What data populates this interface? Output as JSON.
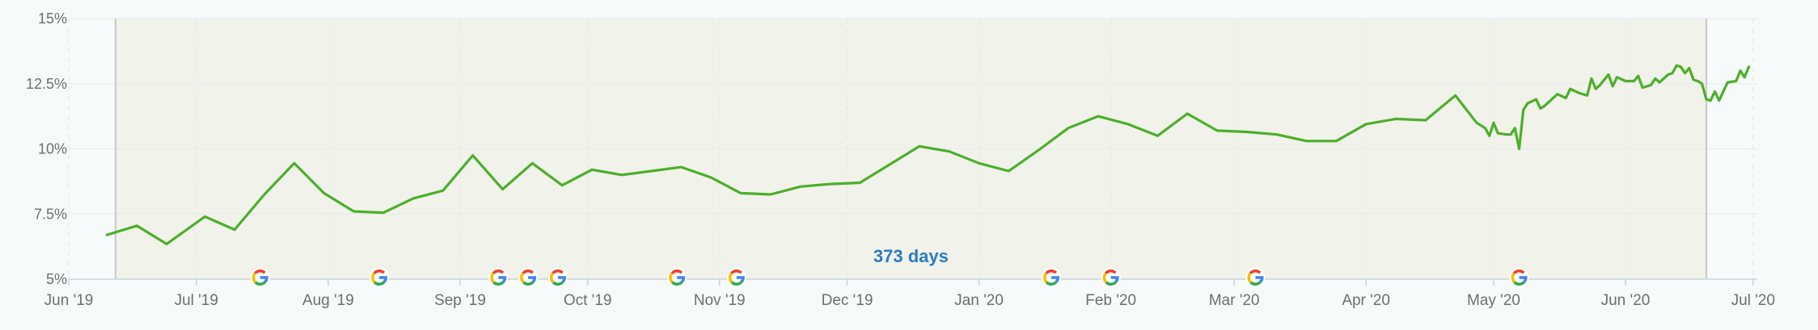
{
  "chart_data": {
    "type": "line",
    "title": "",
    "xlabel": "",
    "ylabel": "",
    "ylim": [
      5,
      15
    ],
    "y_ticks": [
      "5%",
      "7.5%",
      "10%",
      "12.5%",
      "15%"
    ],
    "y_tick_values": [
      5,
      7.5,
      10,
      12.5,
      15
    ],
    "xlim": [
      "2019-06-01",
      "2020-07-02"
    ],
    "x_ticks": [
      {
        "label": "Jun '19",
        "date": "2019-06-01"
      },
      {
        "label": "Jul '19",
        "date": "2019-07-01"
      },
      {
        "label": "Aug '19",
        "date": "2019-08-01"
      },
      {
        "label": "Sep '19",
        "date": "2019-09-01"
      },
      {
        "label": "Oct '19",
        "date": "2019-10-01"
      },
      {
        "label": "Nov '19",
        "date": "2019-11-01"
      },
      {
        "label": "Dec '19",
        "date": "2019-12-01"
      },
      {
        "label": "Jan '20",
        "date": "2020-01-01"
      },
      {
        "label": "Feb '20",
        "date": "2020-02-01"
      },
      {
        "label": "Mar '20",
        "date": "2020-03-01"
      },
      {
        "label": "Apr '20",
        "date": "2020-04-01"
      },
      {
        "label": "May '20",
        "date": "2020-05-01"
      },
      {
        "label": "Jun '20",
        "date": "2020-06-01"
      },
      {
        "label": "Jul '20",
        "date": "2020-07-01"
      }
    ],
    "grid": true,
    "line_color": "#4caf2a",
    "selection": {
      "label": "373 days",
      "start": "2019-06-12",
      "end": "2020-06-20",
      "fill_color": "#f1f3eb"
    },
    "series": [
      {
        "points": [
          [
            "2019-06-10",
            6.7
          ],
          [
            "2019-06-17",
            7.05
          ],
          [
            "2019-06-24",
            6.35
          ],
          [
            "2019-07-03",
            7.4
          ],
          [
            "2019-07-10",
            6.9
          ],
          [
            "2019-07-17",
            8.25
          ],
          [
            "2019-07-24",
            9.45
          ],
          [
            "2019-07-31",
            8.3
          ],
          [
            "2019-08-07",
            7.6
          ],
          [
            "2019-08-14",
            7.55
          ],
          [
            "2019-08-21",
            8.1
          ],
          [
            "2019-08-28",
            8.4
          ],
          [
            "2019-09-04",
            9.75
          ],
          [
            "2019-09-11",
            8.45
          ],
          [
            "2019-09-18",
            9.45
          ],
          [
            "2019-09-25",
            8.6
          ],
          [
            "2019-10-02",
            9.2
          ],
          [
            "2019-10-09",
            9.0
          ],
          [
            "2019-10-16",
            9.15
          ],
          [
            "2019-10-23",
            9.3
          ],
          [
            "2019-10-30",
            8.9
          ],
          [
            "2019-11-06",
            8.3
          ],
          [
            "2019-11-13",
            8.25
          ],
          [
            "2019-11-20",
            8.55
          ],
          [
            "2019-11-27",
            8.65
          ],
          [
            "2019-12-04",
            8.7
          ],
          [
            "2019-12-11",
            9.4
          ],
          [
            "2019-12-18",
            10.1
          ],
          [
            "2019-12-25",
            9.9
          ],
          [
            "2020-01-01",
            9.45
          ],
          [
            "2020-01-08",
            9.15
          ],
          [
            "2020-01-15",
            9.95
          ],
          [
            "2020-01-22",
            10.8
          ],
          [
            "2020-01-29",
            11.25
          ],
          [
            "2020-02-05",
            10.95
          ],
          [
            "2020-02-12",
            10.5
          ],
          [
            "2020-02-19",
            11.35
          ],
          [
            "2020-02-26",
            10.7
          ],
          [
            "2020-03-04",
            10.65
          ],
          [
            "2020-03-11",
            10.55
          ],
          [
            "2020-03-18",
            10.3
          ],
          [
            "2020-03-25",
            10.3
          ],
          [
            "2020-04-01",
            10.95
          ],
          [
            "2020-04-08",
            11.15
          ],
          [
            "2020-04-15",
            11.1
          ],
          [
            "2020-04-22",
            12.05
          ],
          [
            "2020-04-27",
            11.0
          ],
          [
            "2020-04-29",
            10.8
          ],
          [
            "2020-04-30",
            10.5
          ],
          [
            "2020-05-01",
            11.0
          ],
          [
            "2020-05-02",
            10.6
          ],
          [
            "2020-05-04",
            10.55
          ],
          [
            "2020-05-05",
            10.55
          ],
          [
            "2020-05-06",
            10.8
          ],
          [
            "2020-05-07",
            10.0
          ],
          [
            "2020-05-08",
            11.5
          ],
          [
            "2020-05-09",
            11.75
          ],
          [
            "2020-05-11",
            11.9
          ],
          [
            "2020-05-12",
            11.55
          ],
          [
            "2020-05-13",
            11.65
          ],
          [
            "2020-05-15",
            11.95
          ],
          [
            "2020-05-16",
            12.1
          ],
          [
            "2020-05-18",
            11.95
          ],
          [
            "2020-05-19",
            12.3
          ],
          [
            "2020-05-21",
            12.15
          ],
          [
            "2020-05-23",
            12.05
          ],
          [
            "2020-05-24",
            12.7
          ],
          [
            "2020-05-25",
            12.3
          ],
          [
            "2020-05-26",
            12.45
          ],
          [
            "2020-05-28",
            12.85
          ],
          [
            "2020-05-29",
            12.4
          ],
          [
            "2020-05-30",
            12.75
          ],
          [
            "2020-06-01",
            12.6
          ],
          [
            "2020-06-03",
            12.6
          ],
          [
            "2020-06-04",
            12.8
          ],
          [
            "2020-06-05",
            12.35
          ],
          [
            "2020-06-07",
            12.45
          ],
          [
            "2020-06-08",
            12.7
          ],
          [
            "2020-06-09",
            12.55
          ],
          [
            "2020-06-10",
            12.7
          ],
          [
            "2020-06-11",
            12.85
          ],
          [
            "2020-06-12",
            12.9
          ],
          [
            "2020-06-13",
            13.2
          ],
          [
            "2020-06-14",
            13.15
          ],
          [
            "2020-06-15",
            12.9
          ],
          [
            "2020-06-16",
            13.1
          ],
          [
            "2020-06-17",
            12.65
          ],
          [
            "2020-06-18",
            12.6
          ],
          [
            "2020-06-19",
            12.5
          ],
          [
            "2020-06-20",
            11.9
          ],
          [
            "2020-06-21",
            11.85
          ],
          [
            "2020-06-22",
            12.2
          ],
          [
            "2020-06-23",
            11.85
          ],
          [
            "2020-06-24",
            12.2
          ],
          [
            "2020-06-25",
            12.55
          ],
          [
            "2020-06-27",
            12.6
          ],
          [
            "2020-06-28",
            13.0
          ],
          [
            "2020-06-29",
            12.75
          ],
          [
            "2020-06-30",
            13.15
          ]
        ]
      }
    ],
    "annotations": {
      "icon": "google-update-icon",
      "dates": [
        "2019-07-16",
        "2019-08-13",
        "2019-09-10",
        "2019-09-17",
        "2019-09-24",
        "2019-10-22",
        "2019-11-05",
        "2020-01-18",
        "2020-02-01",
        "2020-03-06",
        "2020-05-07"
      ]
    }
  }
}
